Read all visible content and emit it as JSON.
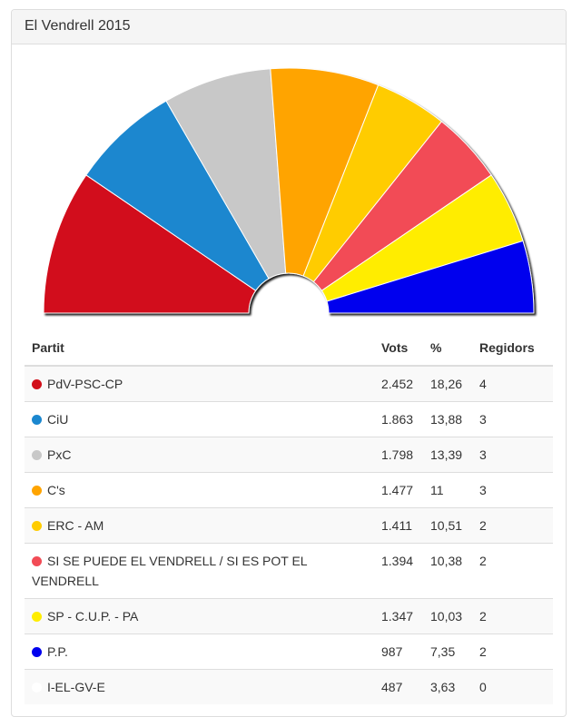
{
  "panel": {
    "title": "El Vendrell 2015"
  },
  "table": {
    "headers": {
      "party": "Partit",
      "votes": "Vots",
      "pct": "%",
      "seats": "Regidors"
    }
  },
  "chart_data": {
    "type": "pie",
    "title": "El Vendrell 2015",
    "subtype": "parliament semicircle",
    "parties": [
      {
        "name": "PdV-PSC-CP",
        "votes": "2.452",
        "pct": "18,26",
        "seats": 4,
        "color": "#d20f1a"
      },
      {
        "name": "CiU",
        "votes": "1.863",
        "pct": "13,88",
        "seats": 3,
        "color": "#1b87cf"
      },
      {
        "name": "PxC",
        "votes": "1.798",
        "pct": "13,39",
        "seats": 3,
        "color": "#c8c8c8"
      },
      {
        "name": "C's",
        "votes": "1.477",
        "pct": "11",
        "seats": 3,
        "color": "#ffa400"
      },
      {
        "name": "ERC - AM",
        "votes": "1.411",
        "pct": "10,51",
        "seats": 2,
        "color": "#ffcc00"
      },
      {
        "name": "SI SE PUEDE EL VENDRELL / SI ES POT EL VENDRELL",
        "votes": "1.394",
        "pct": "10,38",
        "seats": 2,
        "color": "#f24c56"
      },
      {
        "name": "SP - C.U.P. - PA",
        "votes": "1.347",
        "pct": "10,03",
        "seats": 2,
        "color": "#ffed00"
      },
      {
        "name": "P.P.",
        "votes": "987",
        "pct": "7,35",
        "seats": 2,
        "color": "#0000ee"
      },
      {
        "name": "I-EL-GV-E",
        "votes": "487",
        "pct": "3,63",
        "seats": 0,
        "color": "#ffffff"
      }
    ]
  }
}
